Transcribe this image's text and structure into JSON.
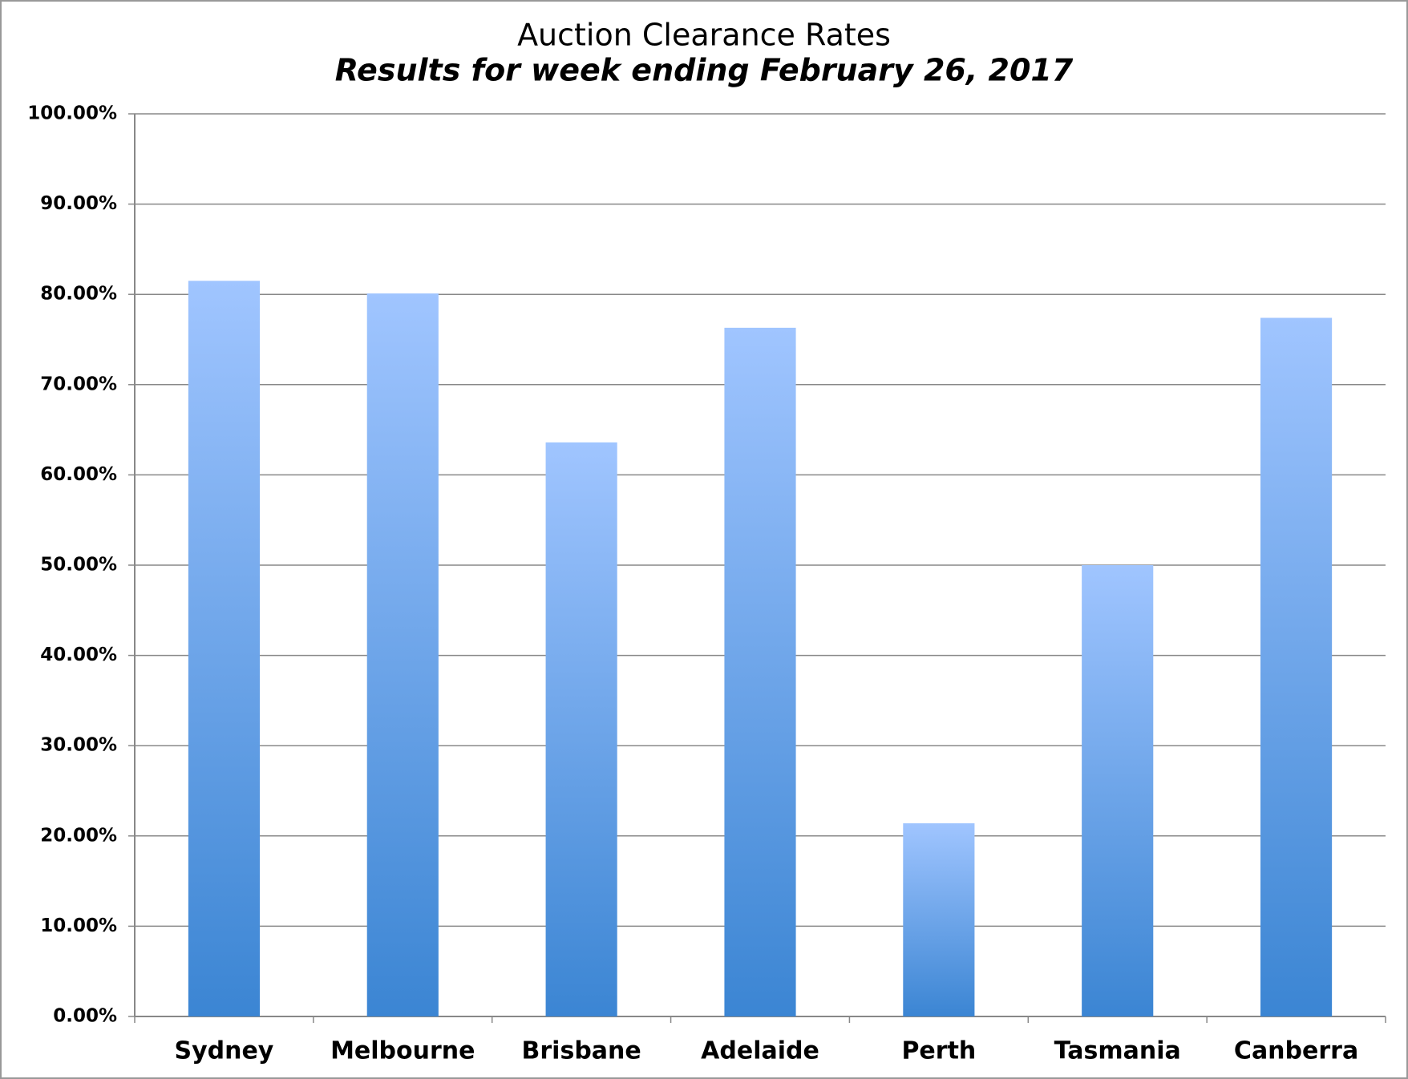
{
  "chart_data": {
    "type": "bar",
    "title": "Auction Clearance Rates",
    "subtitle": "Results for week ending February 26, 2017",
    "categories": [
      "Sydney",
      "Melbourne",
      "Brisbane",
      "Adelaide",
      "Perth",
      "Tasmania",
      "Canberra"
    ],
    "values": [
      81.5,
      80.1,
      63.6,
      76.3,
      21.4,
      50.0,
      77.4
    ],
    "color": "#5b9be6",
    "ylim": [
      0,
      100
    ],
    "yticks": [
      {
        "value": 0,
        "label": "0.00%"
      },
      {
        "value": 10,
        "label": "10.00%"
      },
      {
        "value": 20,
        "label": "20.00%"
      },
      {
        "value": 30,
        "label": "30.00%"
      },
      {
        "value": 40,
        "label": "40.00%"
      },
      {
        "value": 50,
        "label": "50.00%"
      },
      {
        "value": 60,
        "label": "60.00%"
      },
      {
        "value": 70,
        "label": "70.00%"
      },
      {
        "value": 80,
        "label": "80.00%"
      },
      {
        "value": 90,
        "label": "90.00%"
      },
      {
        "value": 100,
        "label": "100.00%"
      }
    ],
    "grid": true
  }
}
